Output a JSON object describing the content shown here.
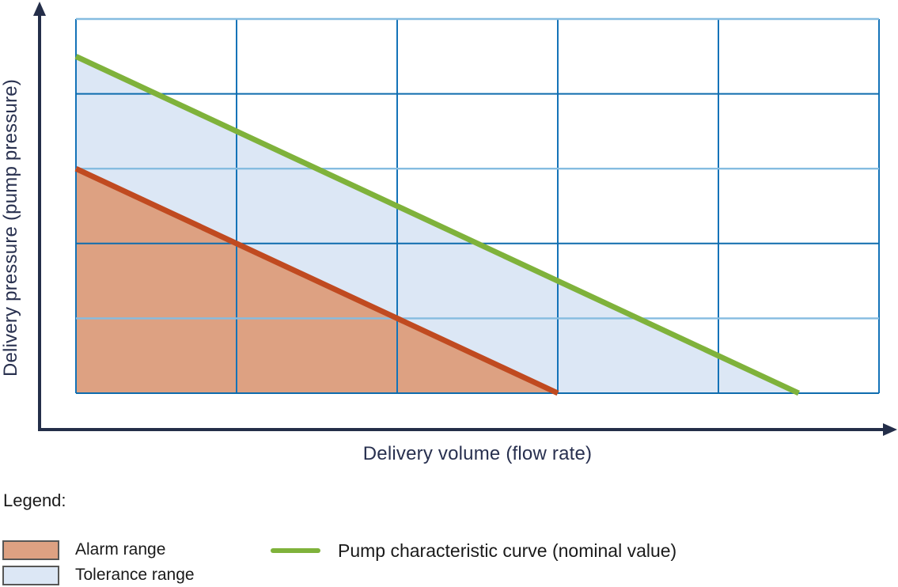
{
  "chart_data": {
    "type": "area",
    "title": "",
    "xlabel": "Delivery volume (flow rate)",
    "ylabel": "Delivery pressure (pump pressure)",
    "units": "grid cells (axes carry no numeric tick labels)",
    "xlim": [
      0,
      5
    ],
    "ylim": [
      0,
      5
    ],
    "ticks_labeled": false,
    "grid": {
      "cols": 5,
      "rows": 5,
      "v_color": "#1473B8",
      "h_color_light": "#85BCE0",
      "h_color_dark": "#0E6CAE"
    },
    "series": [
      {
        "name": "pump-characteristic-curve",
        "color": "#7FB23B",
        "width": 7,
        "points": [
          [
            0,
            4.5
          ],
          [
            4.5,
            0
          ]
        ]
      },
      {
        "name": "alarm-limit-curve",
        "color": "#C04A20",
        "width": 7,
        "points": [
          [
            0,
            3
          ],
          [
            3,
            0
          ]
        ]
      }
    ],
    "regions": [
      {
        "name": "tolerance-range",
        "color": "#DCE7F5",
        "points": [
          [
            0,
            4.5
          ],
          [
            4.5,
            0
          ],
          [
            3,
            0
          ],
          [
            0,
            3
          ]
        ]
      },
      {
        "name": "alarm-range",
        "color": "#DDA182",
        "points": [
          [
            0,
            3
          ],
          [
            3,
            0
          ],
          [
            0,
            0
          ]
        ]
      }
    ],
    "axis_color": "#242E49"
  },
  "legend": {
    "title": "Legend:",
    "items": [
      {
        "label": "Alarm range",
        "swatch": "fill",
        "color": "#DDA182",
        "border": "#575756"
      },
      {
        "label": "Tolerance range",
        "swatch": "fill",
        "color": "#DCE7F5",
        "border": "#575756"
      },
      {
        "label": "Pump characteristic curve (nominal value)",
        "swatch": "line",
        "color": "#7FB23B"
      }
    ]
  }
}
